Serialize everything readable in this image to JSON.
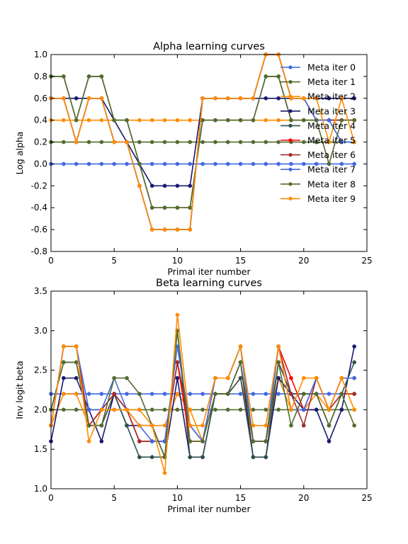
{
  "chart_data": [
    {
      "type": "line",
      "title": "Alpha learning curves",
      "xlabel": "Primal iter number",
      "ylabel": "Log alpha",
      "xlim": [
        0,
        25
      ],
      "ylim": [
        -0.8,
        1.0
      ],
      "xticks": [
        0,
        5,
        10,
        15,
        20,
        25
      ],
      "yticks": [
        -0.8,
        -0.6,
        -0.4,
        -0.2,
        0.0,
        0.2,
        0.4,
        0.6,
        0.8,
        1.0
      ],
      "xtick_labels": [
        "0",
        "5",
        "10",
        "15",
        "20",
        "25"
      ],
      "ytick_labels": [
        "-0.8",
        "-0.6",
        "-0.4",
        "-0.2",
        "0.0",
        "0.2",
        "0.4",
        "0.6",
        "0.8",
        "1.0"
      ],
      "grid": false,
      "legend": "top-right",
      "x": [
        0,
        1,
        2,
        3,
        4,
        5,
        6,
        7,
        8,
        9,
        10,
        11,
        12,
        13,
        14,
        15,
        16,
        17,
        18,
        19,
        20,
        21,
        22,
        23,
        24
      ],
      "series": [
        {
          "name": "Meta iter 0",
          "color": "#4169e1",
          "values": [
            0,
            0,
            0,
            0,
            0,
            0,
            0,
            0,
            0,
            0,
            0,
            0,
            0,
            0,
            0,
            0,
            0,
            0,
            0,
            0,
            0,
            0,
            0,
            0,
            0
          ]
        },
        {
          "name": "Meta iter 1",
          "color": "#556b2f",
          "values": [
            0.2,
            0.2,
            0.2,
            0.2,
            0.2,
            0.2,
            0.2,
            0.2,
            0.2,
            0.2,
            0.2,
            0.2,
            0.2,
            0.2,
            0.2,
            0.2,
            0.2,
            0.2,
            0.2,
            0.2,
            0.2,
            0.2,
            0.2,
            0.2,
            0.2
          ]
        },
        {
          "name": "Meta iter 2",
          "color": "#ff8c00",
          "values": [
            0.4,
            0.4,
            0.4,
            0.4,
            0.4,
            0.4,
            0.4,
            0.4,
            0.4,
            0.4,
            0.4,
            0.4,
            0.4,
            0.4,
            0.4,
            0.4,
            0.4,
            0.4,
            0.4,
            0.4,
            0.4,
            0.4,
            0.4,
            0.4,
            0.4
          ]
        },
        {
          "name": "Meta iter 3",
          "color": "#191970",
          "values": [
            0.6,
            0.6,
            0.6,
            0.6,
            0.6,
            0.4,
            0.2,
            0,
            -0.2,
            -0.2,
            -0.2,
            -0.2,
            0.6,
            0.6,
            0.6,
            0.6,
            0.6,
            0.6,
            0.6,
            0.6,
            0.6,
            0.6,
            0.6,
            0.6,
            0.6
          ]
        },
        {
          "name": "Meta iter 4",
          "color": "#2f4f4f",
          "values": [
            0.8,
            0.8,
            0.4,
            0.8,
            0.8,
            0.4,
            0.4,
            0,
            -0.4,
            -0.4,
            -0.4,
            -0.4,
            0.4,
            0.4,
            0.4,
            0.4,
            0.4,
            0.8,
            0.8,
            0.4,
            0.4,
            0.4,
            0.4,
            0.4,
            0.4
          ]
        },
        {
          "name": "Meta iter 5",
          "color": "#ff0000",
          "values": [
            0.6,
            0.6,
            0.2,
            0.6,
            0.6,
            0.2,
            0.2,
            -0.2,
            -0.6,
            -0.6,
            -0.6,
            -0.6,
            0.6,
            0.6,
            0.6,
            0.6,
            0.6,
            1.0,
            1.0,
            0.6,
            0.6,
            0.4,
            0.4,
            0.4,
            0.4
          ]
        },
        {
          "name": "Meta iter 6",
          "color": "#a52a2a",
          "values": [
            0.6,
            0.6,
            0.2,
            0.6,
            0.6,
            0.2,
            0.2,
            -0.2,
            -0.6,
            -0.6,
            -0.6,
            -0.6,
            0.6,
            0.6,
            0.6,
            0.6,
            0.6,
            1.0,
            1.0,
            0.6,
            0.6,
            0.4,
            0.4,
            0.4,
            0.4
          ]
        },
        {
          "name": "Meta iter 7",
          "color": "#4169e1",
          "values": [
            0.6,
            0.6,
            0.2,
            0.6,
            0.6,
            0.2,
            0.2,
            -0.2,
            -0.6,
            -0.6,
            -0.6,
            -0.6,
            0.6,
            0.6,
            0.6,
            0.6,
            0.6,
            1.0,
            1.0,
            0.6,
            0.6,
            0.4,
            0.4,
            0.2,
            0.2
          ]
        },
        {
          "name": "Meta iter 8",
          "color": "#556b2f",
          "values": [
            0.8,
            0.8,
            0.4,
            0.8,
            0.8,
            0.4,
            0.4,
            0,
            -0.4,
            -0.4,
            -0.4,
            -0.4,
            0.4,
            0.4,
            0.4,
            0.4,
            0.4,
            0.8,
            0.8,
            0.4,
            0.4,
            0.4,
            0,
            0.4,
            0.4
          ]
        },
        {
          "name": "Meta iter 9",
          "color": "#ff8c00",
          "values": [
            0.6,
            0.6,
            0.2,
            0.6,
            0.6,
            0.2,
            0.2,
            -0.2,
            -0.6,
            -0.6,
            -0.6,
            -0.6,
            0.6,
            0.6,
            0.6,
            0.6,
            0.6,
            1.0,
            1.0,
            0.6,
            0.6,
            0.6,
            0.2,
            0.6,
            0.2
          ]
        }
      ]
    },
    {
      "type": "line",
      "title": "Beta learning curves",
      "xlabel": "Primal iter number",
      "ylabel": "Inv logit beta",
      "xlim": [
        0,
        25
      ],
      "ylim": [
        1.0,
        3.5
      ],
      "xticks": [
        0,
        5,
        10,
        15,
        20,
        25
      ],
      "yticks": [
        1.0,
        1.5,
        2.0,
        2.5,
        3.0,
        3.5
      ],
      "xtick_labels": [
        "0",
        "5",
        "10",
        "15",
        "20",
        "25"
      ],
      "ytick_labels": [
        "1.0",
        "1.5",
        "2.0",
        "2.5",
        "3.0",
        "3.5"
      ],
      "grid": false,
      "x": [
        0,
        1,
        2,
        3,
        4,
        5,
        6,
        7,
        8,
        9,
        10,
        11,
        12,
        13,
        14,
        15,
        16,
        17,
        18,
        19,
        20,
        21,
        22,
        23,
        24
      ],
      "series": [
        {
          "name": "Meta iter 0",
          "color": "#4169e1",
          "values": [
            2.2,
            2.2,
            2.2,
            2.2,
            2.2,
            2.2,
            2.2,
            2.2,
            2.2,
            2.2,
            2.2,
            2.2,
            2.2,
            2.2,
            2.2,
            2.2,
            2.2,
            2.2,
            2.2,
            2.2,
            2.2,
            2.2,
            2.2,
            2.2,
            2.2
          ]
        },
        {
          "name": "Meta iter 1",
          "color": "#556b2f",
          "values": [
            2.0,
            2.0,
            2.0,
            2.0,
            2.0,
            2.0,
            2.0,
            2.0,
            2.0,
            2.0,
            2.0,
            2.0,
            2.0,
            2.0,
            2.0,
            2.0,
            2.0,
            2.0,
            2.0,
            2.0,
            2.0,
            2.0,
            2.0,
            2.0,
            2.0
          ]
        },
        {
          "name": "Meta iter 2",
          "color": "#ff8c00",
          "values": [
            1.8,
            2.2,
            2.2,
            1.8,
            1.8,
            2.2,
            2.0,
            2.0,
            1.8,
            1.8,
            2.2,
            2.0,
            1.6,
            2.2,
            2.2,
            2.4,
            1.6,
            1.6,
            2.4,
            2.0,
            2.0,
            2.2,
            2.0,
            2.2,
            2.2
          ]
        },
        {
          "name": "Meta iter 3",
          "color": "#191970",
          "values": [
            1.6,
            2.4,
            2.4,
            2.0,
            1.6,
            2.2,
            1.8,
            1.8,
            1.8,
            1.4,
            2.4,
            1.4,
            1.4,
            2.2,
            2.2,
            2.6,
            1.4,
            1.4,
            2.4,
            2.2,
            2.0,
            2.0,
            1.6,
            2.0,
            2.8
          ]
        },
        {
          "name": "Meta iter 4",
          "color": "#2f4f4f",
          "values": [
            2.0,
            2.6,
            2.6,
            1.8,
            1.8,
            2.2,
            1.8,
            1.4,
            1.4,
            1.4,
            3.0,
            1.4,
            1.4,
            2.2,
            2.2,
            2.4,
            1.4,
            1.4,
            2.6,
            2.2,
            2.2,
            2.2,
            1.8,
            2.2,
            2.6
          ]
        },
        {
          "name": "Meta iter 5",
          "color": "#ff0000",
          "values": [
            1.8,
            2.8,
            2.8,
            1.8,
            2.0,
            2.2,
            2.0,
            1.6,
            1.6,
            1.6,
            2.6,
            1.6,
            1.6,
            2.4,
            2.4,
            2.8,
            1.6,
            1.6,
            2.8,
            2.4,
            2.0,
            2.4,
            2.0,
            2.4,
            2.4
          ]
        },
        {
          "name": "Meta iter 6",
          "color": "#a52a2a",
          "values": [
            1.8,
            2.8,
            2.8,
            1.8,
            2.0,
            2.2,
            2.0,
            1.6,
            1.6,
            1.6,
            2.6,
            1.8,
            1.6,
            2.4,
            2.4,
            2.8,
            1.6,
            1.6,
            2.8,
            2.2,
            1.8,
            2.4,
            2.0,
            2.2,
            2.2
          ]
        },
        {
          "name": "Meta iter 7",
          "color": "#4169e1",
          "values": [
            1.8,
            2.8,
            2.8,
            2.0,
            2.0,
            2.4,
            2.0,
            1.8,
            1.6,
            1.6,
            2.8,
            1.8,
            1.6,
            2.4,
            2.4,
            2.8,
            1.6,
            1.6,
            2.8,
            2.0,
            2.0,
            2.4,
            2.0,
            2.4,
            2.4
          ]
        },
        {
          "name": "Meta iter 8",
          "color": "#556b2f",
          "values": [
            2.0,
            2.6,
            2.6,
            1.8,
            1.8,
            2.4,
            2.4,
            2.2,
            1.8,
            1.4,
            3.0,
            1.6,
            1.6,
            2.2,
            2.2,
            2.6,
            1.6,
            1.6,
            2.6,
            1.8,
            2.2,
            2.2,
            1.8,
            2.2,
            1.8
          ]
        },
        {
          "name": "Meta iter 9",
          "color": "#ff8c00",
          "values": [
            1.8,
            2.8,
            2.8,
            1.6,
            2.0,
            2.0,
            2.0,
            1.8,
            1.8,
            1.2,
            3.2,
            1.8,
            1.8,
            2.4,
            2.4,
            2.8,
            1.8,
            1.8,
            2.8,
            2.0,
            2.4,
            2.4,
            2.0,
            2.4,
            2.0
          ]
        }
      ]
    }
  ]
}
